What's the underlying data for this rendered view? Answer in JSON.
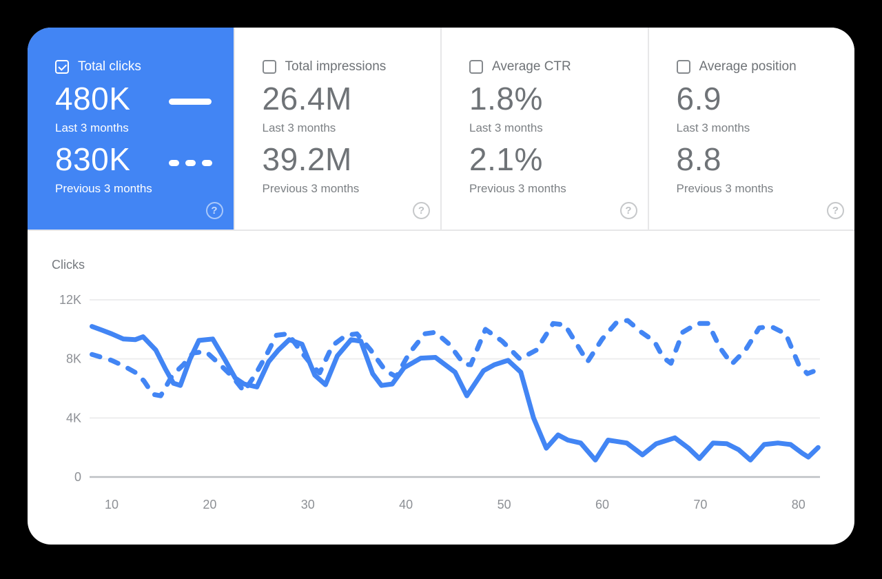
{
  "colors": {
    "accent": "#4285f4",
    "panel_bg": "#ffffff",
    "card_text": "#6f7377",
    "muted_text": "#8d9095",
    "grid": "#ededee",
    "axis": "#bdc0c3",
    "divider": "#e7e7e8"
  },
  "icons": {
    "help_glyph": "?"
  },
  "cards": [
    {
      "label": "Total clicks",
      "checked": true,
      "current": {
        "value": "480K",
        "caption": "Last 3 months"
      },
      "previous": {
        "value": "830K",
        "caption": "Previous 3 months"
      }
    },
    {
      "label": "Total impressions",
      "checked": false,
      "current": {
        "value": "26.4M",
        "caption": "Last 3 months"
      },
      "previous": {
        "value": "39.2M",
        "caption": "Previous 3 months"
      }
    },
    {
      "label": "Average CTR",
      "checked": false,
      "current": {
        "value": "1.8%",
        "caption": "Last 3 months"
      },
      "previous": {
        "value": "2.1%",
        "caption": "Previous 3 months"
      }
    },
    {
      "label": "Average position",
      "checked": false,
      "current": {
        "value": "6.9",
        "caption": "Last 3 months"
      },
      "previous": {
        "value": "8.8",
        "caption": "Previous 3 months"
      }
    }
  ],
  "chart_data": {
    "type": "line",
    "title": "Clicks",
    "xlabel": "",
    "ylabel": "Clicks",
    "xlim": [
      7.5,
      82.5
    ],
    "ylim": [
      0,
      12000
    ],
    "grid": "horizontal",
    "legend_position": "none",
    "y_ticks": [
      {
        "value": 0,
        "label": "0"
      },
      {
        "value": 4000,
        "label": "4K"
      },
      {
        "value": 8000,
        "label": "8K"
      },
      {
        "value": 12000,
        "label": "12K"
      }
    ],
    "x_ticks": [
      {
        "value": 10,
        "label": "10"
      },
      {
        "value": 20,
        "label": "20"
      },
      {
        "value": 30,
        "label": "30"
      },
      {
        "value": 40,
        "label": "40"
      },
      {
        "value": 50,
        "label": "50"
      },
      {
        "value": 60,
        "label": "60"
      },
      {
        "value": 70,
        "label": "70"
      },
      {
        "value": 80,
        "label": "80"
      }
    ],
    "series": [
      {
        "name": "Last 3 months",
        "style": "solid",
        "points": [
          [
            8.0,
            10200
          ],
          [
            9.0,
            9950
          ],
          [
            10.0,
            9700
          ],
          [
            11.2,
            9350
          ],
          [
            12.4,
            9300
          ],
          [
            13.2,
            9500
          ],
          [
            14.5,
            8600
          ],
          [
            15.5,
            7300
          ],
          [
            16.3,
            6350
          ],
          [
            17.0,
            6200
          ],
          [
            18.0,
            8000
          ],
          [
            18.9,
            9250
          ],
          [
            20.3,
            9350
          ],
          [
            21.5,
            8000
          ],
          [
            22.6,
            6700
          ],
          [
            23.5,
            6300
          ],
          [
            24.8,
            6100
          ],
          [
            26.0,
            7800
          ],
          [
            27.0,
            8600
          ],
          [
            28.1,
            9300
          ],
          [
            29.4,
            9000
          ],
          [
            30.7,
            6900
          ],
          [
            31.8,
            6250
          ],
          [
            33.0,
            8200
          ],
          [
            34.4,
            9300
          ],
          [
            35.4,
            9200
          ],
          [
            36.6,
            7000
          ],
          [
            37.5,
            6200
          ],
          [
            38.6,
            6300
          ],
          [
            39.8,
            7400
          ],
          [
            41.5,
            8050
          ],
          [
            43.0,
            8100
          ],
          [
            45.0,
            7100
          ],
          [
            46.2,
            5500
          ],
          [
            47.9,
            7200
          ],
          [
            49.0,
            7600
          ],
          [
            50.4,
            7900
          ],
          [
            51.7,
            7100
          ],
          [
            53.0,
            4000
          ],
          [
            54.3,
            1950
          ],
          [
            55.5,
            2850
          ],
          [
            56.5,
            2500
          ],
          [
            57.8,
            2300
          ],
          [
            59.3,
            1150
          ],
          [
            60.6,
            2500
          ],
          [
            62.5,
            2300
          ],
          [
            64.1,
            1500
          ],
          [
            65.5,
            2250
          ],
          [
            67.4,
            2650
          ],
          [
            68.8,
            1950
          ],
          [
            69.9,
            1250
          ],
          [
            71.3,
            2300
          ],
          [
            72.7,
            2250
          ],
          [
            73.9,
            1850
          ],
          [
            75.1,
            1150
          ],
          [
            76.5,
            2200
          ],
          [
            77.9,
            2300
          ],
          [
            79.2,
            2200
          ],
          [
            80.4,
            1600
          ],
          [
            81.0,
            1350
          ],
          [
            82.0,
            2000
          ]
        ]
      },
      {
        "name": "Previous 3 months",
        "style": "dashed",
        "points": [
          [
            8.0,
            8300
          ],
          [
            9.0,
            8100
          ],
          [
            10.0,
            7900
          ],
          [
            11.3,
            7500
          ],
          [
            12.5,
            7050
          ],
          [
            13.3,
            6500
          ],
          [
            14.2,
            5600
          ],
          [
            15.0,
            5500
          ],
          [
            16.2,
            6900
          ],
          [
            17.3,
            7600
          ],
          [
            18.3,
            8400
          ],
          [
            19.6,
            8500
          ],
          [
            21.0,
            7650
          ],
          [
            22.3,
            6800
          ],
          [
            23.5,
            5800
          ],
          [
            24.7,
            7000
          ],
          [
            25.8,
            8300
          ],
          [
            26.8,
            9600
          ],
          [
            28.0,
            9700
          ],
          [
            29.3,
            8500
          ],
          [
            30.5,
            7500
          ],
          [
            31.2,
            7050
          ],
          [
            32.5,
            8900
          ],
          [
            33.9,
            9600
          ],
          [
            35.0,
            9700
          ],
          [
            36.4,
            8600
          ],
          [
            37.9,
            7200
          ],
          [
            39.0,
            6800
          ],
          [
            40.3,
            8350
          ],
          [
            41.9,
            9700
          ],
          [
            43.0,
            9800
          ],
          [
            44.4,
            9000
          ],
          [
            45.9,
            7650
          ],
          [
            46.6,
            7600
          ],
          [
            48.1,
            10000
          ],
          [
            49.8,
            9200
          ],
          [
            51.6,
            8000
          ],
          [
            53.3,
            8600
          ],
          [
            55.0,
            10400
          ],
          [
            56.2,
            10300
          ],
          [
            57.4,
            9000
          ],
          [
            58.5,
            7800
          ],
          [
            60.0,
            9350
          ],
          [
            61.5,
            10500
          ],
          [
            62.6,
            10600
          ],
          [
            64.0,
            9800
          ],
          [
            65.3,
            9200
          ],
          [
            66.2,
            8100
          ],
          [
            67.0,
            7700
          ],
          [
            68.2,
            9800
          ],
          [
            69.7,
            10400
          ],
          [
            70.8,
            10400
          ],
          [
            72.0,
            8750
          ],
          [
            73.2,
            7650
          ],
          [
            74.6,
            8600
          ],
          [
            76.0,
            10100
          ],
          [
            77.2,
            10200
          ],
          [
            78.7,
            9700
          ],
          [
            80.0,
            7650
          ],
          [
            80.9,
            7000
          ],
          [
            81.7,
            7200
          ]
        ]
      }
    ]
  }
}
